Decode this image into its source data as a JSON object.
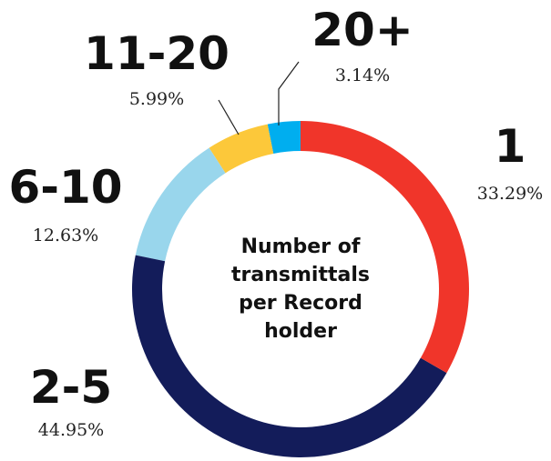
{
  "chart_data": {
    "type": "donut",
    "title": "Number of transmittals per Record holder",
    "categories": [
      "1",
      "2-5",
      "6-10",
      "11-20",
      "20+"
    ],
    "values": [
      33.29,
      44.95,
      12.63,
      5.99,
      3.14
    ],
    "value_labels": [
      "33.29%",
      "44.95%",
      "12.63%",
      "5.99%",
      "3.14%"
    ],
    "colors": [
      "#f0352a",
      "#131c5a",
      "#99d6ec",
      "#fcc83a",
      "#00aeef"
    ]
  }
}
